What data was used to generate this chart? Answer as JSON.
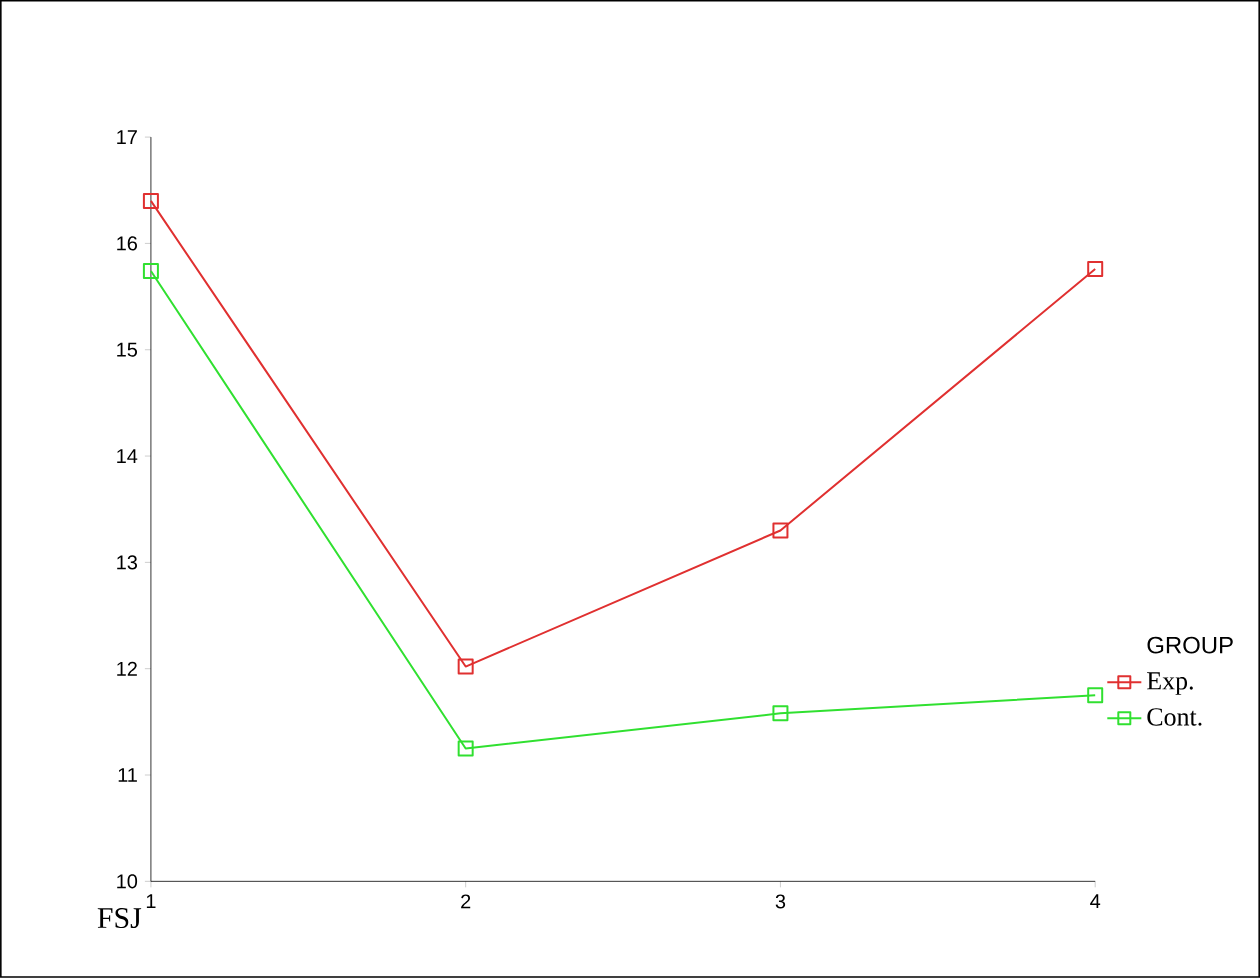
{
  "chart_data": {
    "type": "line",
    "xlabel": "FSJ",
    "legend_title": "GROUP",
    "x": [
      1,
      2,
      3,
      4
    ],
    "xlim": [
      1,
      4
    ],
    "xticks": [
      1,
      2,
      3,
      4
    ],
    "ylim": [
      10,
      17
    ],
    "yticks": [
      10,
      11,
      12,
      13,
      14,
      15,
      16,
      17
    ],
    "marker": "square",
    "legend": "right",
    "series": [
      {
        "name": "Exp.",
        "color": "#e03030",
        "values": [
          16.4,
          12.02,
          13.3,
          15.76
        ]
      },
      {
        "name": "Cont.",
        "color": "#30e030",
        "values": [
          15.74,
          11.25,
          11.58,
          11.75
        ]
      }
    ]
  }
}
